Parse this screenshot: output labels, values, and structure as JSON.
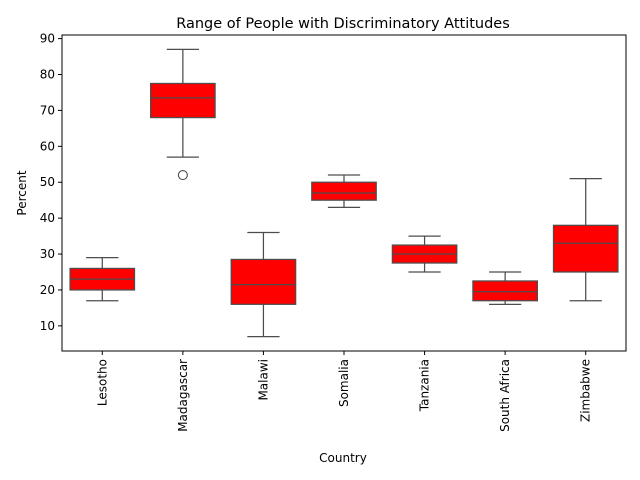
{
  "chart_data": {
    "type": "box",
    "title": "Range of People with Discriminatory Attitudes",
    "xlabel": "Country",
    "ylabel": "Percent",
    "ylim": [
      3,
      91
    ],
    "yticks": [
      10,
      20,
      30,
      40,
      50,
      60,
      70,
      80,
      90
    ],
    "grid": false,
    "box_color": "#ff0000",
    "line_color": "#4d4d4d",
    "categories": [
      "Lesotho",
      "Madagascar",
      "Malawi",
      "Somalia",
      "Tanzania",
      "South Africa",
      "Zimbabwe"
    ],
    "boxes": [
      {
        "category": "Lesotho",
        "whisker_low": 17,
        "q1": 20,
        "median": 23,
        "q3": 26,
        "whisker_high": 29,
        "outliers": []
      },
      {
        "category": "Madagascar",
        "whisker_low": 57,
        "q1": 68,
        "median": 73.5,
        "q3": 77.5,
        "whisker_high": 87,
        "outliers": [
          52
        ]
      },
      {
        "category": "Malawi",
        "whisker_low": 7,
        "q1": 16,
        "median": 21.5,
        "q3": 28.5,
        "whisker_high": 36,
        "outliers": []
      },
      {
        "category": "Somalia",
        "whisker_low": 43,
        "q1": 45,
        "median": 47,
        "q3": 50,
        "whisker_high": 52,
        "outliers": []
      },
      {
        "category": "Tanzania",
        "whisker_low": 25,
        "q1": 27.5,
        "median": 30,
        "q3": 32.5,
        "whisker_high": 35,
        "outliers": []
      },
      {
        "category": "South Africa",
        "whisker_low": 16,
        "q1": 17,
        "median": 19.5,
        "q3": 22.5,
        "whisker_high": 25,
        "outliers": []
      },
      {
        "category": "Zimbabwe",
        "whisker_low": 17,
        "q1": 25,
        "median": 33,
        "q3": 38,
        "whisker_high": 51,
        "outliers": []
      }
    ]
  }
}
